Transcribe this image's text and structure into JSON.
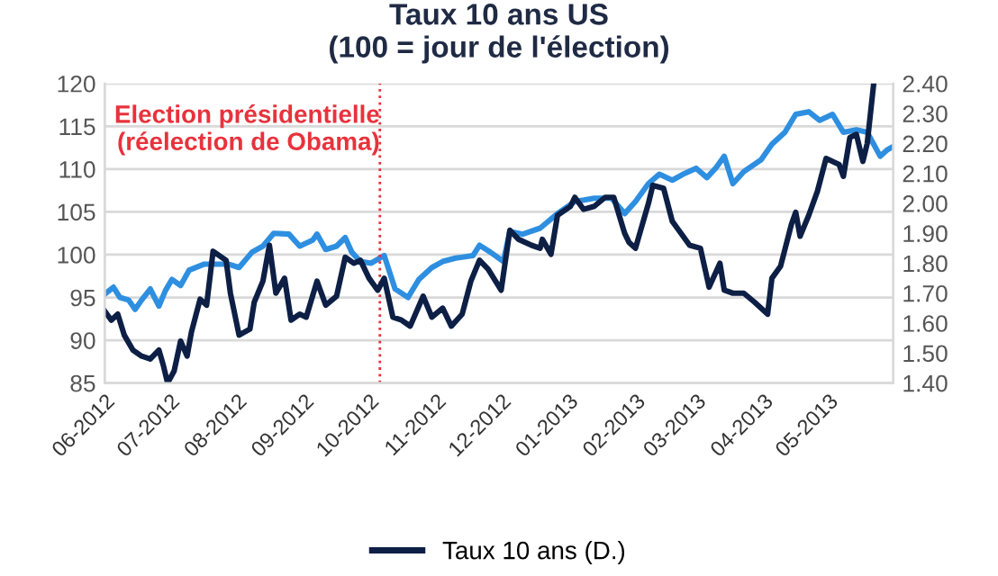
{
  "chart_data": {
    "type": "line",
    "title": "Taux 10 ans US\n(100 = jour de l'élection)",
    "xlim": [
      "2012-06-01",
      "2013-05-31"
    ],
    "xticks": [
      {
        "value": "2012-06-01",
        "label": "06-2012"
      },
      {
        "value": "2012-07-01",
        "label": "07-2012"
      },
      {
        "value": "2012-08-01",
        "label": "08-2012"
      },
      {
        "value": "2012-09-01",
        "label": "09-2012"
      },
      {
        "value": "2012-10-01",
        "label": "10-2012"
      },
      {
        "value": "2012-11-01",
        "label": "11-2012"
      },
      {
        "value": "2012-12-01",
        "label": "12-2012"
      },
      {
        "value": "2013-01-01",
        "label": "01-2013"
      },
      {
        "value": "2013-02-01",
        "label": "02-2013"
      },
      {
        "value": "2013-03-01",
        "label": "03-2013"
      },
      {
        "value": "2013-04-01",
        "label": "04-2013"
      },
      {
        "value": "2013-05-01",
        "label": "05-2013"
      }
    ],
    "ylim": [
      85,
      120
    ],
    "yticks": [
      85,
      90,
      95,
      100,
      105,
      110,
      115,
      120
    ],
    "y2lim": [
      1.4,
      2.4
    ],
    "y2ticks": [
      {
        "value": 1.4,
        "label": "1.40"
      },
      {
        "value": 1.5,
        "label": "1.50"
      },
      {
        "value": 1.6,
        "label": "1.60"
      },
      {
        "value": 1.7,
        "label": "1.70"
      },
      {
        "value": 1.8,
        "label": "1.80"
      },
      {
        "value": 1.9,
        "label": "1.90"
      },
      {
        "value": 2.0,
        "label": "2.00"
      },
      {
        "value": 2.1,
        "label": "2.10"
      },
      {
        "value": 2.2,
        "label": "2.20"
      },
      {
        "value": 2.3,
        "label": "2.30"
      },
      {
        "value": 2.4,
        "label": "2.40"
      }
    ],
    "grid": "y",
    "legend": "bottom",
    "line_style": "solid",
    "marker": "none",
    "ref_lines": [
      {
        "axis": "x",
        "value": "2012-10-06",
        "label": "Election présidentielle\n(réelection de Obama)",
        "color": "#e8323c",
        "line_style": "dotted"
      }
    ],
    "series": [
      {
        "color": "#2e8fe0",
        "x": [
          "2012-06-01",
          "2012-06-05",
          "2012-06-08",
          "2012-06-12",
          "2012-06-15",
          "2012-06-18",
          "2012-06-22",
          "2012-06-26",
          "2012-06-29",
          "2012-07-02",
          "2012-07-06",
          "2012-07-10",
          "2012-07-17",
          "2012-07-22",
          "2012-07-28",
          "2012-08-02",
          "2012-08-08",
          "2012-08-13",
          "2012-08-18",
          "2012-08-25",
          "2012-08-30",
          "2012-09-05",
          "2012-09-07",
          "2012-09-11",
          "2012-09-16",
          "2012-09-20",
          "2012-09-23",
          "2012-09-27",
          "2012-10-02",
          "2012-10-08",
          "2012-10-13",
          "2012-10-19",
          "2012-10-24",
          "2012-10-30",
          "2012-11-04",
          "2012-11-10",
          "2012-11-18",
          "2012-11-21",
          "2012-11-26",
          "2012-12-02",
          "2012-12-05",
          "2012-12-11",
          "2012-12-19",
          "2012-12-27",
          "2013-01-04",
          "2013-01-13",
          "2013-01-21",
          "2013-01-27",
          "2013-02-01",
          "2013-02-07",
          "2013-02-12",
          "2013-02-18",
          "2013-02-23",
          "2013-03-01",
          "2013-03-06",
          "2013-03-10",
          "2013-03-14",
          "2013-03-18",
          "2013-03-23",
          "2013-03-31",
          "2013-04-05",
          "2013-04-11",
          "2013-04-16",
          "2013-04-22",
          "2013-04-27",
          "2013-05-03",
          "2013-05-08",
          "2013-05-14",
          "2013-05-19",
          "2013-05-25",
          "2013-05-28",
          "2013-05-30"
        ],
        "values": [
          95.4,
          96.2,
          95,
          94.7,
          93.6,
          94.7,
          96,
          94,
          95.8,
          97.1,
          96.4,
          98.2,
          98.9,
          98.9,
          98.9,
          98.5,
          100.3,
          101,
          102.5,
          102.4,
          101,
          101.7,
          102.4,
          100.6,
          101,
          102,
          100.3,
          99.2,
          99,
          99.9,
          96,
          95,
          97.1,
          98.5,
          99.2,
          99.6,
          99.9,
          101.1,
          100.3,
          99.2,
          102.7,
          102.4,
          103.1,
          104.8,
          106.2,
          106.6,
          106.6,
          104.8,
          106.2,
          108.3,
          109.4,
          108.7,
          109.4,
          110.1,
          109,
          110.1,
          111.5,
          108.3,
          109.7,
          111.1,
          112.9,
          114.3,
          116.4,
          116.7,
          115.7,
          116.4,
          114.3,
          114.6,
          114.3,
          111.5,
          112.2,
          112.5
        ]
      },
      {
        "name": "Taux 10 ans (D.)",
        "color": "#0d1f45",
        "axis": "y2",
        "x": [
          "2012-06-01",
          "2012-06-04",
          "2012-06-07",
          "2012-06-10",
          "2012-06-14",
          "2012-06-18",
          "2012-06-22",
          "2012-06-26",
          "2012-06-28",
          "2012-06-30",
          "2012-07-03",
          "2012-07-06",
          "2012-07-09",
          "2012-07-11",
          "2012-07-15",
          "2012-07-18",
          "2012-07-21",
          "2012-07-27",
          "2012-07-29",
          "2012-08-02",
          "2012-08-07",
          "2012-08-09",
          "2012-08-13",
          "2012-08-16",
          "2012-08-19",
          "2012-08-23",
          "2012-08-26",
          "2012-08-30",
          "2012-09-02",
          "2012-09-07",
          "2012-09-11",
          "2012-09-16",
          "2012-09-20",
          "2012-09-24",
          "2012-09-27",
          "2012-10-01",
          "2012-10-05",
          "2012-10-08",
          "2012-10-12",
          "2012-10-16",
          "2012-10-20",
          "2012-10-26",
          "2012-10-30",
          "2012-11-04",
          "2012-11-08",
          "2012-11-13",
          "2012-11-17",
          "2012-11-21",
          "2012-11-25",
          "2012-12-01",
          "2012-12-05",
          "2012-12-09",
          "2012-12-15",
          "2012-12-19",
          "2012-12-20",
          "2012-12-24",
          "2012-12-27",
          "2013-01-02",
          "2013-01-04",
          "2013-01-08",
          "2013-01-13",
          "2013-01-18",
          "2013-01-22",
          "2013-01-27",
          "2013-01-29",
          "2013-02-01",
          "2013-02-07",
          "2013-02-09",
          "2013-02-14",
          "2013-02-18",
          "2013-02-20",
          "2013-02-26",
          "2013-03-03",
          "2013-03-07",
          "2013-03-12",
          "2013-03-14",
          "2013-03-18",
          "2013-03-23",
          "2013-03-28",
          "2013-04-03",
          "2013-04-05",
          "2013-04-09",
          "2013-04-14",
          "2013-04-16",
          "2013-04-18",
          "2013-04-22",
          "2013-04-26",
          "2013-04-30",
          "2013-05-06",
          "2013-05-08",
          "2013-05-11",
          "2013-05-14",
          "2013-05-17",
          "2013-05-19",
          "2013-05-22"
        ],
        "values": [
          1.64,
          1.61,
          1.63,
          1.56,
          1.51,
          1.49,
          1.48,
          1.51,
          1.46,
          1.4,
          1.44,
          1.54,
          1.49,
          1.57,
          1.68,
          1.66,
          1.84,
          1.81,
          1.7,
          1.56,
          1.58,
          1.67,
          1.74,
          1.86,
          1.7,
          1.75,
          1.61,
          1.63,
          1.62,
          1.74,
          1.66,
          1.69,
          1.82,
          1.8,
          1.81,
          1.75,
          1.71,
          1.75,
          1.62,
          1.61,
          1.59,
          1.69,
          1.62,
          1.65,
          1.59,
          1.63,
          1.74,
          1.81,
          1.78,
          1.71,
          1.91,
          1.88,
          1.86,
          1.85,
          1.88,
          1.83,
          1.96,
          1.99,
          2.02,
          1.98,
          1.99,
          2.02,
          2.02,
          1.9,
          1.87,
          1.85,
          2.0,
          2.06,
          2.05,
          1.94,
          1.92,
          1.86,
          1.85,
          1.72,
          1.8,
          1.71,
          1.7,
          1.7,
          1.67,
          1.63,
          1.75,
          1.79,
          1.93,
          1.97,
          1.89,
          1.96,
          2.04,
          2.15,
          2.13,
          2.09,
          2.22,
          2.23,
          2.14,
          2.2,
          2.4
        ]
      }
    ]
  }
}
